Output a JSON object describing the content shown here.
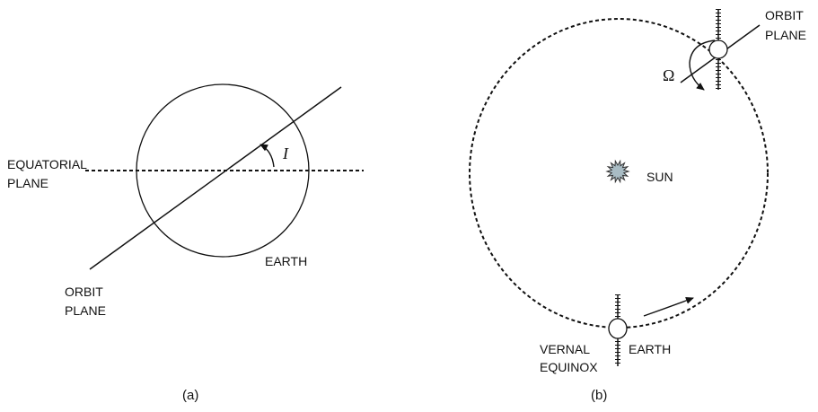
{
  "panel_a": {
    "equatorial_plane": [
      "EQUATORIAL",
      "PLANE"
    ],
    "inclination": "I",
    "earth": "EARTH",
    "orbit_plane": [
      "ORBIT",
      "PLANE"
    ],
    "caption": "(a)"
  },
  "panel_b": {
    "orbit_plane": [
      "ORBIT",
      "PLANE"
    ],
    "node": "Ω",
    "sun": "SUN",
    "vernal_equinox": [
      "VERNAL",
      "EQUINOX"
    ],
    "earth": "EARTH",
    "caption": "(b)"
  }
}
